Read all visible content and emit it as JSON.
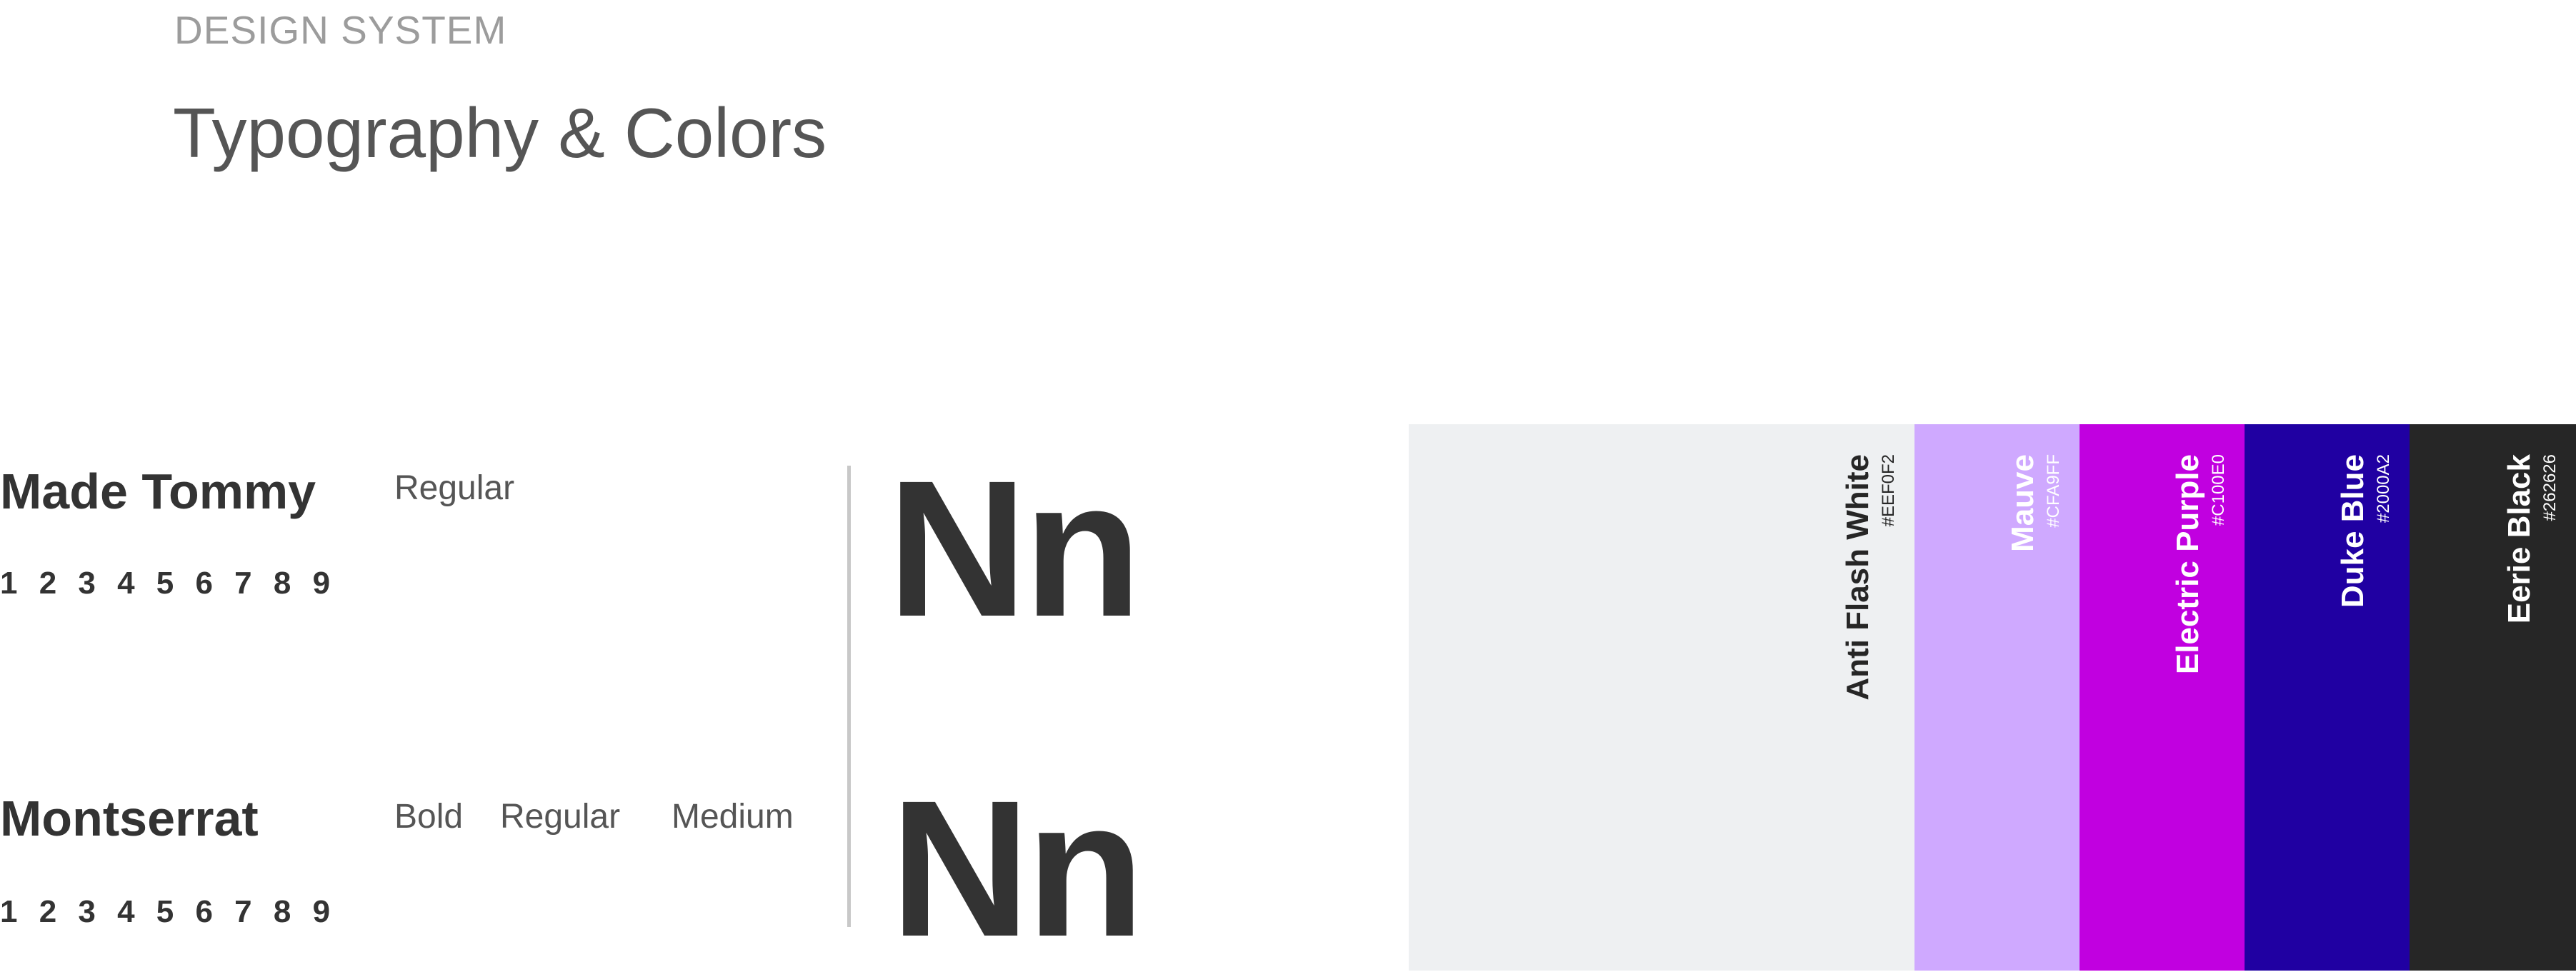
{
  "header": {
    "eyebrow": "DESIGN SYSTEM",
    "title": "Typography & Colors"
  },
  "fonts": [
    {
      "name": "Made Tommy",
      "digits": "1 2 3 4 5 6 7 8 9",
      "weights": [
        "Regular"
      ],
      "sample": "Nn"
    },
    {
      "name": "Montserrat",
      "digits": "1 2 3 4 5 6 7 8 9",
      "weights": [
        "Bold",
        "Regular",
        "Medium"
      ],
      "sample": "Nn"
    }
  ],
  "colors": [
    {
      "name": "Anti Flash White",
      "hex": "#EEF0F2",
      "text_color": "#262626"
    },
    {
      "name": "Mauve",
      "hex": "#CFA9FF",
      "text_color": "#FFFFFF"
    },
    {
      "name": "Electric Purple",
      "hex": "#C100E0",
      "text_color": "#FFFFFF"
    },
    {
      "name": "Duke Blue",
      "hex": "#2000A2",
      "text_color": "#FFFFFF"
    },
    {
      "name": "Eerie Black",
      "hex": "#262626",
      "text_color": "#FFFFFF"
    }
  ]
}
